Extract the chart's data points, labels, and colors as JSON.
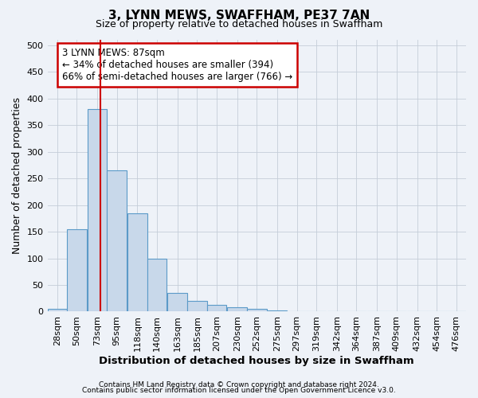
{
  "title": "3, LYNN MEWS, SWAFFHAM, PE37 7AN",
  "subtitle": "Size of property relative to detached houses in Swaffham",
  "xlabel": "Distribution of detached houses by size in Swaffham",
  "ylabel": "Number of detached properties",
  "footer_line1": "Contains HM Land Registry data © Crown copyright and database right 2024.",
  "footer_line2": "Contains public sector information licensed under the Open Government Licence v3.0.",
  "annotation_title": "3 LYNN MEWS: 87sqm",
  "annotation_line2": "← 34% of detached houses are smaller (394)",
  "annotation_line3": "66% of semi-detached houses are larger (766) →",
  "property_size": 87,
  "bin_starts": [
    28,
    50,
    73,
    95,
    118,
    140,
    163,
    185,
    207,
    230,
    252,
    275,
    297,
    319,
    342,
    364,
    387,
    409,
    432,
    454,
    476
  ],
  "bin_width": 22,
  "bar_heights": [
    5,
    155,
    380,
    265,
    185,
    100,
    35,
    20,
    13,
    8,
    5,
    2,
    0,
    0,
    0,
    0,
    1,
    0,
    0,
    0,
    1
  ],
  "bar_color": "#c8d8ea",
  "bar_edge_color": "#5b9ac8",
  "vline_color": "#cc0000",
  "annotation_box_color": "#cc0000",
  "bg_color": "#eef2f8",
  "grid_color": "#c5cdd8",
  "ylim": [
    0,
    510
  ],
  "yticks": [
    0,
    50,
    100,
    150,
    200,
    250,
    300,
    350,
    400,
    450,
    500
  ],
  "title_fontsize": 11,
  "subtitle_fontsize": 9,
  "tick_fontsize": 8,
  "ylabel_fontsize": 9,
  "xlabel_fontsize": 9.5,
  "annotation_fontsize": 8.5,
  "footer_fontsize": 6.5
}
